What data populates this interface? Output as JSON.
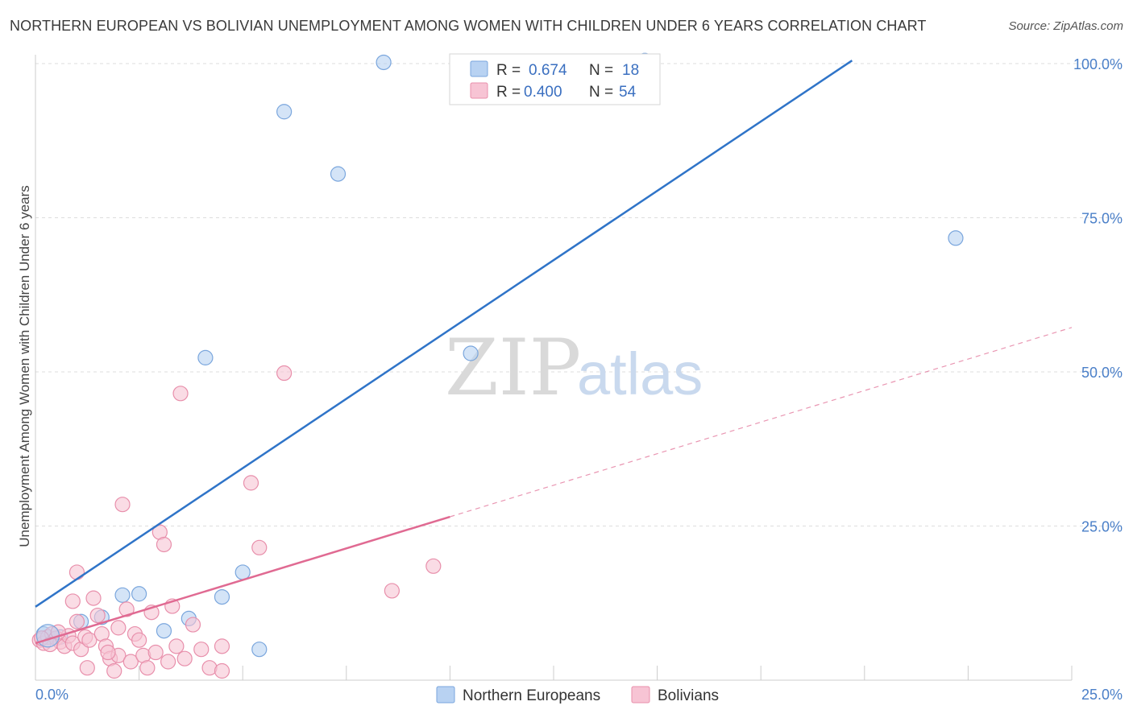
{
  "title": "NORTHERN EUROPEAN VS BOLIVIAN UNEMPLOYMENT AMONG WOMEN WITH CHILDREN UNDER 6 YEARS CORRELATION CHART",
  "source": "Source: ZipAtlas.com",
  "watermark": {
    "zip": "ZIP",
    "atlas": "atlas"
  },
  "colors": {
    "blue_fill": "#b8d2f2",
    "blue_stroke": "#7aa6dd",
    "blue_line": "#2f74c8",
    "pink_fill": "#f7c4d4",
    "pink_stroke": "#e88fab",
    "pink_line": "#e06a92",
    "grid": "#dddddd",
    "tick_text": "#4a7fc8"
  },
  "chart_data": {
    "type": "scatter",
    "xlabel": "",
    "ylabel": "Unemployment Among Women with Children Under 6 years",
    "xlim": [
      0,
      25
    ],
    "ylim": [
      0,
      100
    ],
    "x_tick_labels": [
      "0.0%",
      "25.0%"
    ],
    "y_tick_labels": [
      "25.0%",
      "50.0%",
      "75.0%",
      "100.0%"
    ],
    "y_ticks": [
      25,
      50,
      75,
      100
    ],
    "legend": [
      {
        "name": "Northern Europeans",
        "r_label": "R =",
        "r_value": "0.674",
        "n_label": "N =",
        "n_value": "18"
      },
      {
        "name": "Bolivians",
        "r_label": "R =",
        "r_value": "0.400",
        "n_label": "N =",
        "n_value": "54"
      }
    ],
    "series": [
      {
        "name": "Northern Europeans",
        "color": "blue",
        "points": [
          [
            0.2,
            7.5
          ],
          [
            0.6,
            7.0
          ],
          [
            1.1,
            9.5
          ],
          [
            1.6,
            10.2
          ],
          [
            2.1,
            13.8
          ],
          [
            2.5,
            14.0
          ],
          [
            3.1,
            8.0
          ],
          [
            3.7,
            10.0
          ],
          [
            4.1,
            52.3
          ],
          [
            4.5,
            13.5
          ],
          [
            5.0,
            17.5
          ],
          [
            5.4,
            5.0
          ],
          [
            6.0,
            92.2
          ],
          [
            7.3,
            82.1
          ],
          [
            8.4,
            100.2
          ],
          [
            10.5,
            53.0
          ],
          [
            14.7,
            100.5
          ],
          [
            22.2,
            71.7
          ]
        ],
        "trend": {
          "x": [
            0,
            19.7
          ],
          "y": [
            11.9,
            100.5
          ],
          "style": "solid"
        }
      },
      {
        "name": "Bolivians",
        "color": "pink",
        "points": [
          [
            0.1,
            6.5
          ],
          [
            0.2,
            6.0
          ],
          [
            0.3,
            7.0
          ],
          [
            0.4,
            7.5
          ],
          [
            0.5,
            6.8
          ],
          [
            0.6,
            6.2
          ],
          [
            0.7,
            5.5
          ],
          [
            0.8,
            7.2
          ],
          [
            0.9,
            6.0
          ],
          [
            1.0,
            9.5
          ],
          [
            0.9,
            12.8
          ],
          [
            1.0,
            17.5
          ],
          [
            1.1,
            5.0
          ],
          [
            1.2,
            7.0
          ],
          [
            1.3,
            6.5
          ],
          [
            1.4,
            13.3
          ],
          [
            1.5,
            10.5
          ],
          [
            1.6,
            7.5
          ],
          [
            1.7,
            5.5
          ],
          [
            1.8,
            3.5
          ],
          [
            1.9,
            1.5
          ],
          [
            2.0,
            4.0
          ],
          [
            2.0,
            8.5
          ],
          [
            2.1,
            28.5
          ],
          [
            2.2,
            11.5
          ],
          [
            2.3,
            3.0
          ],
          [
            2.4,
            7.5
          ],
          [
            2.5,
            6.5
          ],
          [
            2.6,
            4.0
          ],
          [
            2.7,
            2.0
          ],
          [
            2.8,
            11.0
          ],
          [
            2.9,
            4.5
          ],
          [
            3.0,
            24.0
          ],
          [
            3.1,
            22.0
          ],
          [
            3.2,
            3.0
          ],
          [
            3.3,
            12.0
          ],
          [
            3.4,
            5.5
          ],
          [
            3.5,
            46.5
          ],
          [
            3.6,
            3.5
          ],
          [
            3.8,
            9.0
          ],
          [
            4.0,
            5.0
          ],
          [
            4.2,
            2.0
          ],
          [
            4.5,
            1.5
          ],
          [
            4.5,
            5.5
          ],
          [
            5.2,
            32.0
          ],
          [
            5.4,
            21.5
          ],
          [
            6.0,
            49.8
          ],
          [
            8.6,
            14.5
          ],
          [
            9.6,
            18.5
          ],
          [
            0.15,
            6.8
          ],
          [
            0.35,
            5.8
          ],
          [
            0.55,
            7.8
          ],
          [
            1.25,
            2.0
          ],
          [
            1.75,
            4.5
          ]
        ],
        "trend": {
          "x": [
            0,
            10.0
          ],
          "y": [
            6.0,
            26.5
          ],
          "style": "solid"
        },
        "trend_extension": {
          "x": [
            10.0,
            25.0
          ],
          "y": [
            26.5,
            57.2
          ],
          "style": "dashed"
        }
      }
    ]
  }
}
